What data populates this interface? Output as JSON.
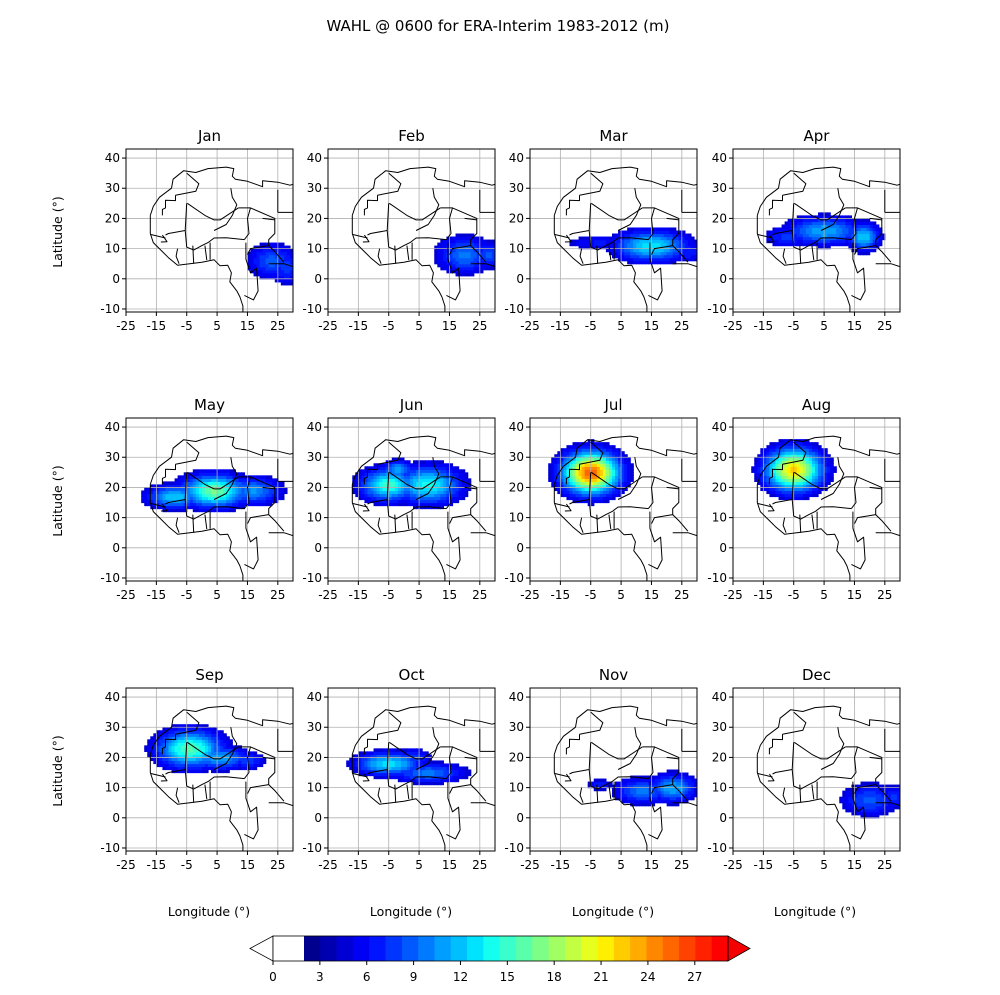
{
  "figure": {
    "title": "WAHL @ 0600 for ERA-Interim 1983-2012 (m)",
    "ylabel": "Latitude (°)",
    "xlabel": "Longitude (°)"
  },
  "axes": {
    "x_ticks": [
      "-25",
      "-15",
      "-5",
      "5",
      "15",
      "25"
    ],
    "y_ticks": [
      "40",
      "30",
      "20",
      "10",
      "0",
      "-10"
    ],
    "xlim": [
      -25,
      30
    ],
    "ylim": [
      -11,
      43
    ],
    "grid": true
  },
  "panels": [
    {
      "label": "Jan"
    },
    {
      "label": "Feb"
    },
    {
      "label": "Mar"
    },
    {
      "label": "Apr"
    },
    {
      "label": "May"
    },
    {
      "label": "Jun"
    },
    {
      "label": "Jul"
    },
    {
      "label": "Aug"
    },
    {
      "label": "Sep"
    },
    {
      "label": "Oct"
    },
    {
      "label": "Nov"
    },
    {
      "label": "Dec"
    }
  ],
  "colorbar": {
    "tick_labels": [
      "0",
      "3",
      "6",
      "9",
      "12",
      "15",
      "18",
      "21",
      "24",
      "27"
    ],
    "range": [
      0,
      30
    ],
    "extend": "both",
    "colors": [
      "#00008f",
      "#0000b0",
      "#0000d4",
      "#0000f5",
      "#0014ff",
      "#0035ff",
      "#0059ff",
      "#007aff",
      "#009eff",
      "#00bfff",
      "#00e3ff",
      "#14fff0",
      "#38ffcc",
      "#59ffab",
      "#7dff87",
      "#a1ff63",
      "#c2ff42",
      "#e6ff1f",
      "#ffef00",
      "#ffcc00",
      "#ffab00",
      "#ff8700",
      "#ff6600",
      "#ff4200",
      "#ff2100",
      "#ff0000"
    ],
    "over_color": "#f50000",
    "under_color": "#ffffff"
  }
}
